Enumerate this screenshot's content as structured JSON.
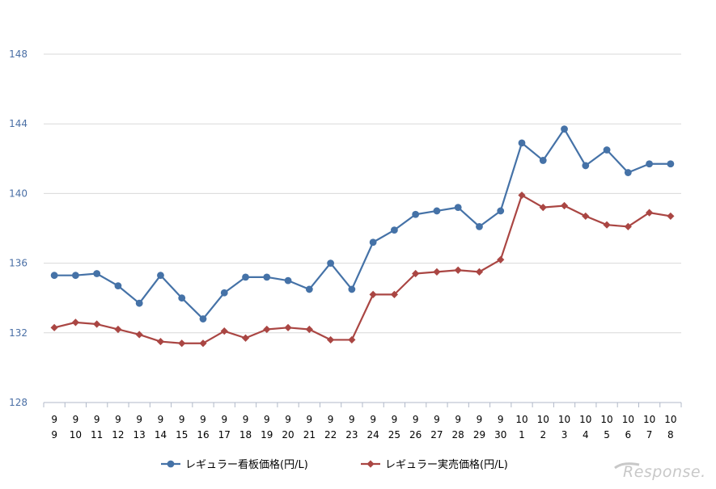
{
  "chart_data": {
    "type": "line",
    "title": "",
    "xlabel": "",
    "ylabel": "",
    "ylim": [
      128,
      148
    ],
    "yticks": [
      128,
      132,
      136,
      140,
      144,
      148
    ],
    "grid": true,
    "legend_position": "bottom",
    "categories": [
      {
        "month": "9",
        "day": "9"
      },
      {
        "month": "9",
        "day": "10"
      },
      {
        "month": "9",
        "day": "11"
      },
      {
        "month": "9",
        "day": "12"
      },
      {
        "month": "9",
        "day": "13"
      },
      {
        "month": "9",
        "day": "14"
      },
      {
        "month": "9",
        "day": "15"
      },
      {
        "month": "9",
        "day": "16"
      },
      {
        "month": "9",
        "day": "17"
      },
      {
        "month": "9",
        "day": "18"
      },
      {
        "month": "9",
        "day": "19"
      },
      {
        "month": "9",
        "day": "20"
      },
      {
        "month": "9",
        "day": "21"
      },
      {
        "month": "9",
        "day": "22"
      },
      {
        "month": "9",
        "day": "23"
      },
      {
        "month": "9",
        "day": "24"
      },
      {
        "month": "9",
        "day": "25"
      },
      {
        "month": "9",
        "day": "26"
      },
      {
        "month": "9",
        "day": "27"
      },
      {
        "month": "9",
        "day": "28"
      },
      {
        "month": "9",
        "day": "29"
      },
      {
        "month": "9",
        "day": "30"
      },
      {
        "month": "10",
        "day": "1"
      },
      {
        "month": "10",
        "day": "2"
      },
      {
        "month": "10",
        "day": "3"
      },
      {
        "month": "10",
        "day": "4"
      },
      {
        "month": "10",
        "day": "5"
      },
      {
        "month": "10",
        "day": "6"
      },
      {
        "month": "10",
        "day": "7"
      },
      {
        "month": "10",
        "day": "8"
      }
    ],
    "series": [
      {
        "name": "レギュラー看板価格(円/L)",
        "color": "#4572a7",
        "marker": "circle",
        "values": [
          135.3,
          135.3,
          135.4,
          134.7,
          133.7,
          135.3,
          134.0,
          132.8,
          134.3,
          135.2,
          135.2,
          135.0,
          134.5,
          136.0,
          134.5,
          137.2,
          137.9,
          138.8,
          139.0,
          139.2,
          138.1,
          139.0,
          142.9,
          141.9,
          143.7,
          141.6,
          142.5,
          141.2,
          141.7,
          141.7
        ]
      },
      {
        "name": "レギュラー実売価格(円/L)",
        "color": "#aa4643",
        "marker": "diamond",
        "values": [
          132.3,
          132.6,
          132.5,
          132.2,
          131.9,
          131.5,
          131.4,
          131.4,
          132.1,
          131.7,
          132.2,
          132.3,
          132.2,
          131.6,
          131.6,
          134.2,
          134.2,
          135.4,
          135.5,
          135.6,
          135.5,
          136.2,
          139.9,
          139.2,
          139.3,
          138.7,
          138.2,
          138.1,
          138.9,
          138.7
        ]
      }
    ]
  },
  "watermark": {
    "text": "Response."
  }
}
